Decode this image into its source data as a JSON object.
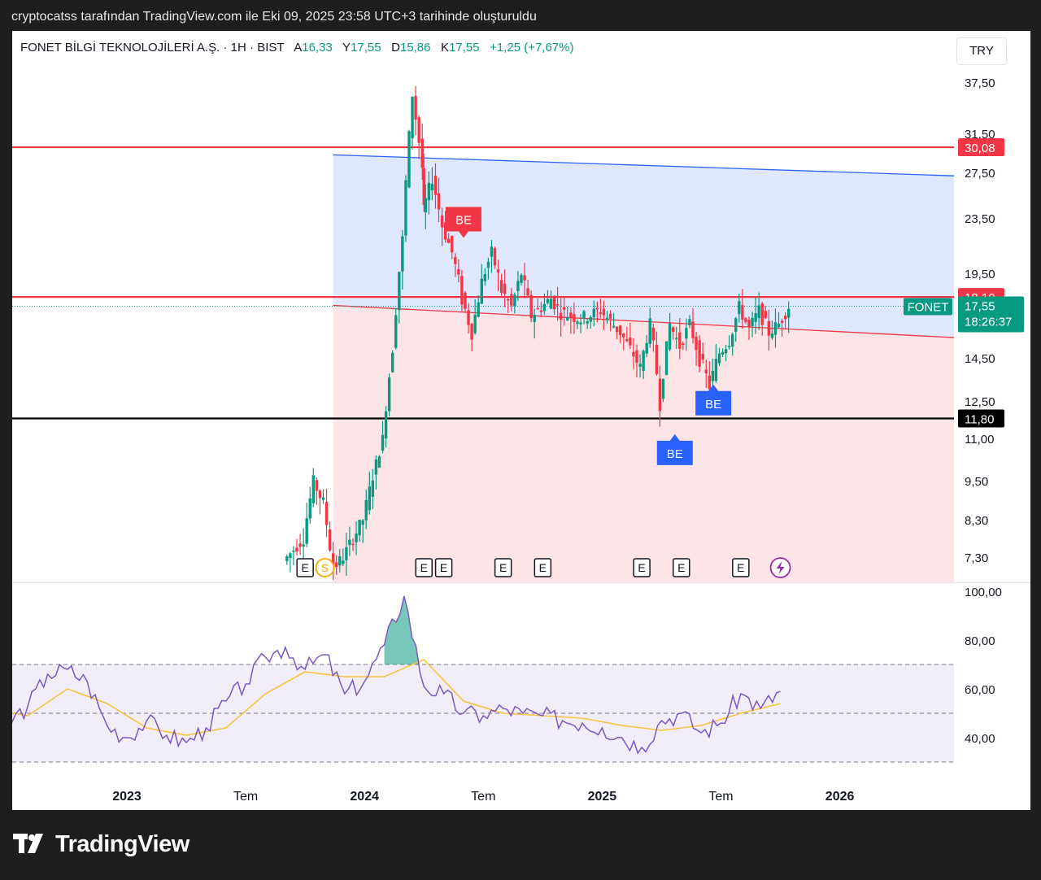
{
  "header": {
    "caption": "cryptocatss tarafından TradingView.com ile Eki 09, 2025 23:58 UTC+3 tarihinde oluşturuldu"
  },
  "legend": {
    "symbol": "FONET BİLGİ TEKNOLOJİLERİ A.Ş. · 1H · BIST",
    "open_label": "A",
    "open": "16,33",
    "high_label": "Y",
    "high": "17,55",
    "low_label": "D",
    "low": "15,86",
    "close_label": "K",
    "close": "17,55",
    "change": "+1,25 (+7,67%)"
  },
  "currency": "TRY",
  "brand": "TradingView",
  "colors": {
    "up": "#089981",
    "down": "#f23645",
    "rsi": "#7e57c2",
    "rsi_ma": "#f5c542",
    "channel_blue": "#2962ff",
    "channel_red": "#f23645"
  },
  "icons": [
    "earnings-icon",
    "split-icon",
    "lightning-icon",
    "tradingview-logo-icon"
  ],
  "chart_data": [
    {
      "type": "candlestick",
      "symbol": "FONET",
      "interval": "1H",
      "exchange": "BIST",
      "price_axis_ticks": [
        "37,50",
        "31,50",
        "27,50",
        "23,50",
        "19,50",
        "14,50",
        "12,50",
        "11,00",
        "9,50",
        "8,30",
        "7,30"
      ],
      "time_axis_ticks": [
        "2023",
        "Tem",
        "2024",
        "Tem",
        "2025",
        "Tem",
        "2026"
      ],
      "last_price": {
        "symbol": "FONET",
        "value": "17,55",
        "countdown": "18:26:37"
      },
      "horizontal_lines": [
        {
          "value": 30.08,
          "label": "30,08",
          "color": "#f23645"
        },
        {
          "value": 18.1,
          "label": "18,10",
          "color": "#f23645"
        },
        {
          "value": 11.8,
          "label": "11,80",
          "color": "#000000"
        }
      ],
      "channel": {
        "upper": {
          "start": [
            "2023-11",
            29.3
          ],
          "end": [
            "2026-03",
            27.2
          ]
        },
        "middle": {
          "start": [
            "2023-11",
            17.6
          ],
          "end": [
            "2026-03",
            15.7
          ]
        },
        "lower_zone_bottom": 7.0
      },
      "signals": [
        {
          "label": "BE",
          "kind": "sell",
          "date": "2024-06",
          "price": 22.0
        },
        {
          "label": "BE",
          "kind": "buy",
          "date": "2025-06",
          "price": 13.3
        },
        {
          "label": "BE",
          "kind": "buy",
          "date": "2025-05",
          "price": 11.2
        }
      ],
      "events": [
        {
          "label": "E",
          "date": "2023-10"
        },
        {
          "label": "S",
          "date": "2023-11"
        },
        {
          "label": "E",
          "date": "2024-04"
        },
        {
          "label": "E",
          "date": "2024-05"
        },
        {
          "label": "E",
          "date": "2024-08"
        },
        {
          "label": "E",
          "date": "2024-10"
        },
        {
          "label": "E",
          "date": "2025-03"
        },
        {
          "label": "E",
          "date": "2025-05"
        },
        {
          "label": "E",
          "date": "2025-08"
        },
        {
          "label": "",
          "date": "2025-10"
        }
      ],
      "price_path": [
        [
          "2023-09",
          7.2
        ],
        [
          "2023-10",
          7.8
        ],
        [
          "2023-10",
          9.5
        ],
        [
          "2023-11",
          8.8
        ],
        [
          "2023-11",
          7.0
        ],
        [
          "2023-12",
          7.3
        ],
        [
          "2024-01",
          8.3
        ],
        [
          "2024-02",
          11.0
        ],
        [
          "2024-02",
          15.0
        ],
        [
          "2024-03",
          22.0
        ],
        [
          "2024-03",
          36.0
        ],
        [
          "2024-03",
          28.0
        ],
        [
          "2024-04",
          24.0
        ],
        [
          "2024-04",
          27.0
        ],
        [
          "2024-05",
          23.0
        ],
        [
          "2024-05",
          21.0
        ],
        [
          "2024-06",
          18.0
        ],
        [
          "2024-06",
          16.0
        ],
        [
          "2024-07",
          19.0
        ],
        [
          "2024-07",
          21.0
        ],
        [
          "2024-08",
          18.5
        ],
        [
          "2024-08",
          17.5
        ],
        [
          "2024-09",
          19.5
        ],
        [
          "2024-09",
          17.0
        ],
        [
          "2024-10",
          17.5
        ],
        [
          "2024-10",
          18.0
        ],
        [
          "2024-11",
          17.2
        ],
        [
          "2024-12",
          16.8
        ],
        [
          "2025-01",
          17.3
        ],
        [
          "2025-02",
          16.0
        ],
        [
          "2025-02",
          15.0
        ],
        [
          "2025-03",
          14.0
        ],
        [
          "2025-03",
          16.5
        ],
        [
          "2025-04",
          12.5
        ],
        [
          "2025-04",
          16.5
        ],
        [
          "2025-05",
          15.2
        ],
        [
          "2025-05",
          16.5
        ],
        [
          "2025-06",
          14.5
        ],
        [
          "2025-06",
          13.2
        ],
        [
          "2025-07",
          14.8
        ],
        [
          "2025-07",
          15.5
        ],
        [
          "2025-08",
          17.5
        ],
        [
          "2025-08",
          16.2
        ],
        [
          "2025-09",
          17.3
        ],
        [
          "2025-09",
          16.0
        ],
        [
          "2025-10",
          16.5
        ],
        [
          "2025-10",
          17.55
        ]
      ]
    },
    {
      "type": "line",
      "indicator": "RSI",
      "y_axis_ticks": [
        "100,00",
        "80,00",
        "60,00",
        "40,00"
      ],
      "levels": [
        70,
        50,
        30
      ],
      "series": [
        {
          "role": "rsi",
          "color": "#7e57c2",
          "values": [
            [
              "2022-04",
              55
            ],
            [
              "2022-05",
              58
            ],
            [
              "2022-06",
              51
            ],
            [
              "2022-07",
              46
            ],
            [
              "2022-08",
              53
            ],
            [
              "2022-09",
              66
            ],
            [
              "2022-10",
              68
            ],
            [
              "2022-11",
              63
            ],
            [
              "2022-12",
              45
            ],
            [
              "2023-01",
              40
            ],
            [
              "2023-02",
              47
            ],
            [
              "2023-03",
              41
            ],
            [
              "2023-04",
              38
            ],
            [
              "2023-05",
              44
            ],
            [
              "2023-06",
              55
            ],
            [
              "2023-07",
              62
            ],
            [
              "2023-08",
              73
            ],
            [
              "2023-09",
              77
            ],
            [
              "2023-10",
              68
            ],
            [
              "2023-11",
              74
            ],
            [
              "2023-12",
              58
            ],
            [
              "2024-01",
              63
            ],
            [
              "2024-02",
              78
            ],
            [
              "2024-03",
              98
            ],
            [
              "2024-04",
              61
            ],
            [
              "2024-05",
              58
            ],
            [
              "2024-06",
              50
            ],
            [
              "2024-07",
              49
            ],
            [
              "2024-08",
              52
            ],
            [
              "2024-09",
              50
            ],
            [
              "2024-10",
              49
            ],
            [
              "2024-11",
              47
            ],
            [
              "2024-12",
              46
            ],
            [
              "2025-01",
              44
            ],
            [
              "2025-02",
              40
            ],
            [
              "2025-03",
              36
            ],
            [
              "2025-04",
              47
            ],
            [
              "2025-05",
              50
            ],
            [
              "2025-06",
              42
            ],
            [
              "2025-07",
              46
            ],
            [
              "2025-08",
              58
            ],
            [
              "2025-09",
              52
            ],
            [
              "2025-10",
              59
            ]
          ]
        },
        {
          "role": "rsi_ma",
          "color": "#f5c542",
          "values": [
            [
              "2022-04",
              48
            ],
            [
              "2022-06",
              52
            ],
            [
              "2022-08",
              49
            ],
            [
              "2022-10",
              60
            ],
            [
              "2022-12",
              54
            ],
            [
              "2023-02",
              44
            ],
            [
              "2023-04",
              41
            ],
            [
              "2023-06",
              44
            ],
            [
              "2023-08",
              58
            ],
            [
              "2023-10",
              67
            ],
            [
              "2023-12",
              65
            ],
            [
              "2024-02",
              65
            ],
            [
              "2024-04",
              72
            ],
            [
              "2024-06",
              55
            ],
            [
              "2024-08",
              50
            ],
            [
              "2024-10",
              49
            ],
            [
              "2024-12",
              48
            ],
            [
              "2025-02",
              45
            ],
            [
              "2025-04",
              43
            ],
            [
              "2025-06",
              45
            ],
            [
              "2025-08",
              50
            ],
            [
              "2025-10",
              54
            ]
          ]
        }
      ]
    }
  ]
}
